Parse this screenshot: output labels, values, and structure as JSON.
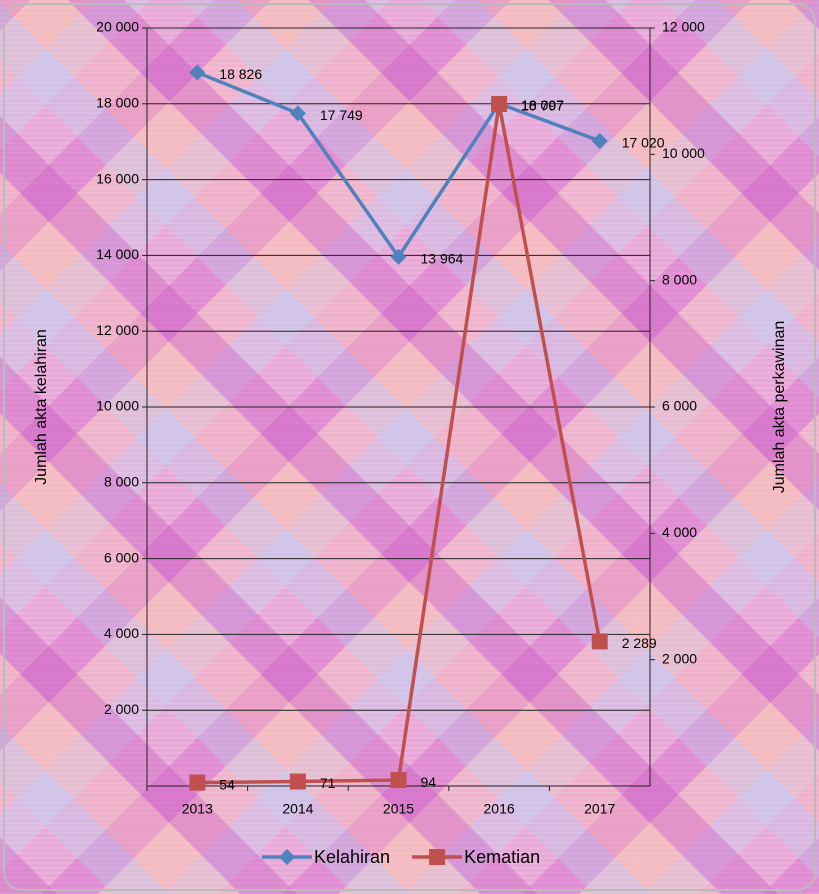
{
  "chart_data": {
    "type": "line",
    "y_label": "Jumlah akta kelahiran",
    "y2_label": "Jumlah akta perkawinan",
    "categories": [
      "2013",
      "2014",
      "2015",
      "2016",
      "2017"
    ],
    "series": [
      {
        "name": "Kelahiran",
        "color": "#4f81bd",
        "marker": "diamond",
        "values": [
          18826,
          17749,
          13964,
          18007,
          17020
        ],
        "value_labels": [
          "18 826",
          "17 749",
          "13 964",
          "18 007",
          "17 020"
        ]
      },
      {
        "name": "Kematian",
        "color": "#c0504d",
        "marker": "square",
        "axis": "y2",
        "values": [
          54,
          71,
          94,
          10797,
          2289
        ],
        "value_labels": [
          "54",
          "71",
          "94",
          "10 797",
          "2 289"
        ]
      }
    ],
    "ylim": [
      0,
      20000
    ],
    "yticks": [
      {
        "value": 2000,
        "label": "2 000"
      },
      {
        "value": 4000,
        "label": "4 000"
      },
      {
        "value": 6000,
        "label": "6 000"
      },
      {
        "value": 8000,
        "label": "8 000"
      },
      {
        "value": 10000,
        "label": "10 000"
      },
      {
        "value": 12000,
        "label": "12 000"
      },
      {
        "value": 14000,
        "label": "14 000"
      },
      {
        "value": 16000,
        "label": "16 000"
      },
      {
        "value": 18000,
        "label": "18 000"
      },
      {
        "value": 20000,
        "label": "20 000"
      }
    ],
    "y2lim": [
      0,
      12000
    ],
    "y2ticks": [
      {
        "value": 2000,
        "label": "2 000"
      },
      {
        "value": 4000,
        "label": "4 000"
      },
      {
        "value": 6000,
        "label": "6 000"
      },
      {
        "value": 8000,
        "label": "8 000"
      },
      {
        "value": 10000,
        "label": "10 000"
      },
      {
        "value": 12000,
        "label": "12 000"
      }
    ],
    "grid": true
  }
}
